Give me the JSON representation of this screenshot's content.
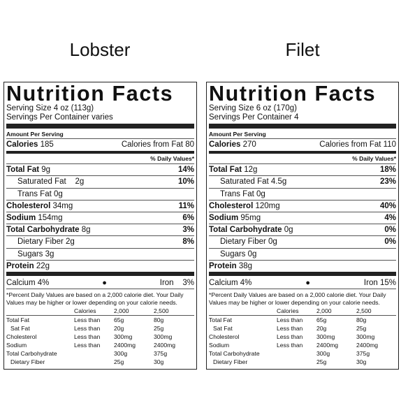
{
  "labels": [
    {
      "product": "Lobster",
      "title": "Nutrition Facts",
      "serving_size": "Serving Size 4 oz (113g)",
      "servings_per_container": "Servings Per Container varies",
      "amount_per_serving": "Amount Per Serving",
      "calories_label": "Calories",
      "calories": "185",
      "calories_from_fat": "Calories from Fat 80",
      "dv_header": "% Daily Values*",
      "total_fat": {
        "label": "Total Fat",
        "amount": "9g",
        "dv": "14%"
      },
      "sat_fat": {
        "label": "Saturated Fat",
        "amount": "2g",
        "dv": "10%"
      },
      "trans_fat": {
        "label": "Trans Fat",
        "amount": "0g"
      },
      "cholesterol": {
        "label": "Cholesterol",
        "amount": "34mg",
        "dv": "11%"
      },
      "sodium": {
        "label": "Sodium",
        "amount": "154mg",
        "dv": "6%"
      },
      "total_carb": {
        "label": "Total Carbohydrate",
        "amount": "8g",
        "dv": "3%"
      },
      "dietary_fiber": {
        "label": "Dietary Fiber",
        "amount": "2g",
        "dv": "8%"
      },
      "sugars": {
        "label": "Sugars",
        "amount": "3g"
      },
      "protein": {
        "label": "Protein",
        "amount": "22g"
      },
      "calcium": "Calcium 4%",
      "bullet": "●",
      "iron_label": "Iron",
      "iron": "3%",
      "footnote": "*Percent Daily Values are based on a 2,000 calorie diet. Your Daily Values may be higher or lower depending on your calorie needs."
    },
    {
      "product": "Filet",
      "title": "Nutrition Facts",
      "serving_size": "Serving Size 6 oz (170g)",
      "servings_per_container": "Servings Per Container 4",
      "amount_per_serving": "Amount Per Serving",
      "calories_label": "Calories",
      "calories": "270",
      "calories_from_fat": "Calories from Fat 110",
      "dv_header": "% Daily Values*",
      "total_fat": {
        "label": "Total Fat",
        "amount": "12g",
        "dv": "18%"
      },
      "sat_fat": {
        "label": "Saturated Fat",
        "amount": "4.5g",
        "dv": "23%"
      },
      "trans_fat": {
        "label": "Trans Fat",
        "amount": "0g"
      },
      "cholesterol": {
        "label": "Cholesterol",
        "amount": "120mg",
        "dv": "40%"
      },
      "sodium": {
        "label": "Sodium",
        "amount": "95mg",
        "dv": "4%"
      },
      "total_carb": {
        "label": "Total Carbohydrate",
        "amount": "0g",
        "dv": "0%"
      },
      "dietary_fiber": {
        "label": "Dietary Fiber",
        "amount": "0g",
        "dv": "0%"
      },
      "sugars": {
        "label": "Sugars",
        "amount": "0g"
      },
      "protein": {
        "label": "Protein",
        "amount": "38g"
      },
      "calcium": "Calcium 4%",
      "bullet": "●",
      "iron_label": "Iron",
      "iron": "15%",
      "footnote": "*Percent Daily Values are based on a 2,000 calorie diet. Your Daily Values may be higher or lower depending on your calorie needs."
    }
  ],
  "reference_table": {
    "header": [
      "",
      "Calories",
      "2,000",
      "2,500"
    ],
    "rows": [
      [
        "Total Fat",
        "Less than",
        "65g",
        "80g"
      ],
      [
        "Sat Fat",
        "Less than",
        "20g",
        "25g"
      ],
      [
        "Cholesterol",
        "Less than",
        "300mg",
        "300mg"
      ],
      [
        "Sodium",
        "Less than",
        "2400mg",
        "2400mg"
      ],
      [
        "Total Carbohydrate",
        "",
        "300g",
        "375g"
      ],
      [
        "Dietary Fiber",
        "",
        "25g",
        "30g"
      ]
    ]
  }
}
